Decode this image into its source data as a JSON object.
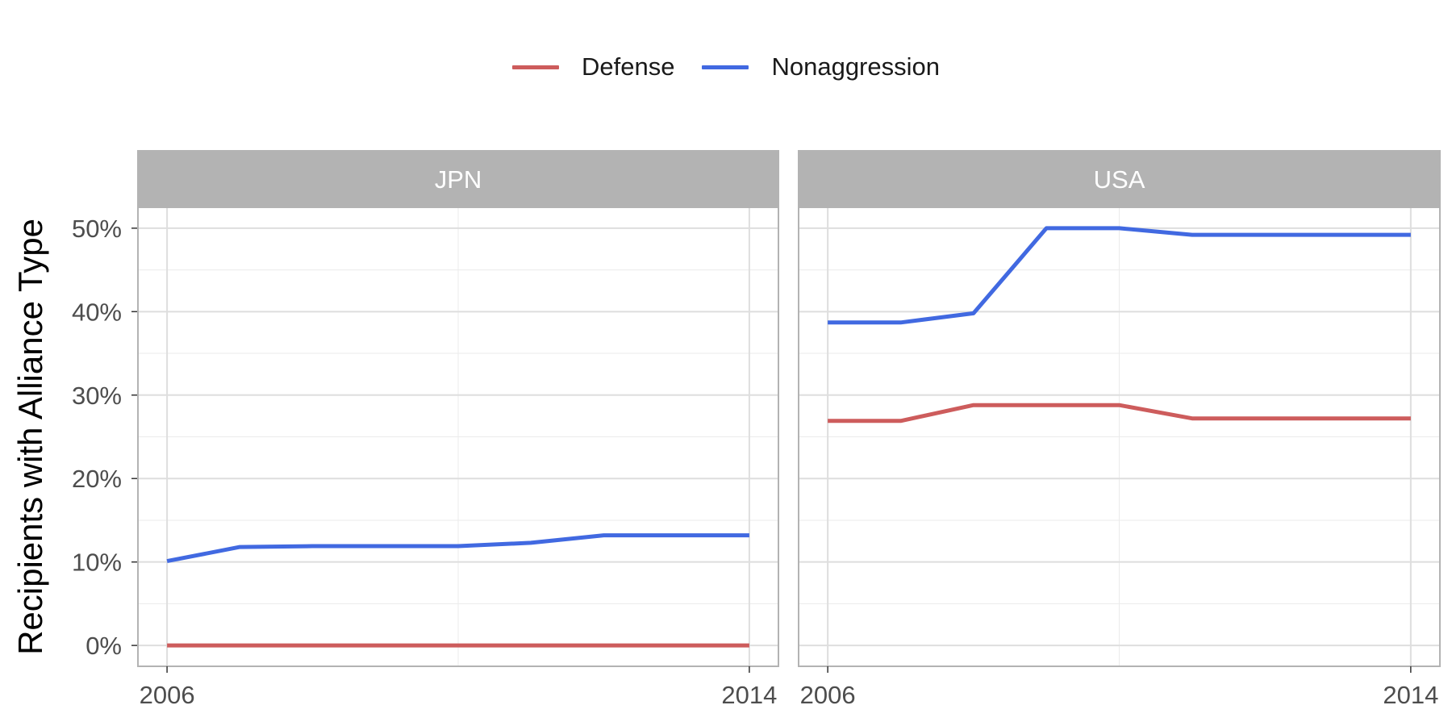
{
  "legend": {
    "items": [
      {
        "label": "Defense",
        "color": "#cd5c5c"
      },
      {
        "label": "Nonaggression",
        "color": "#4169e1"
      }
    ]
  },
  "chart_data": {
    "type": "line",
    "ylabel": "Recipients with Alliance Type",
    "xlabel": "",
    "ylim": [
      -2.5,
      52.5
    ],
    "yticks": [
      0,
      10,
      20,
      30,
      40,
      50
    ],
    "ytick_labels": [
      "0%",
      "10%",
      "20%",
      "30%",
      "40%",
      "50%"
    ],
    "xlim": [
      2005.6,
      2014.4
    ],
    "xticks": [
      2006,
      2014
    ],
    "xtick_labels": [
      "2006",
      "2014"
    ],
    "grid": true,
    "legend_position": "top",
    "panels": [
      {
        "facet": "JPN",
        "x": [
          2006,
          2007,
          2008,
          2009,
          2010,
          2011,
          2012,
          2013,
          2014
        ],
        "series": [
          {
            "name": "Defense",
            "color": "#cd5c5c",
            "values": [
              0,
              0,
              0,
              0,
              0,
              0,
              0,
              0,
              0
            ]
          },
          {
            "name": "Nonaggression",
            "color": "#4169e1",
            "values": [
              10.1,
              11.8,
              11.9,
              11.9,
              11.9,
              12.3,
              13.2,
              13.2,
              13.2
            ]
          }
        ]
      },
      {
        "facet": "USA",
        "x": [
          2006,
          2007,
          2008,
          2009,
          2010,
          2011,
          2012,
          2013,
          2014
        ],
        "series": [
          {
            "name": "Defense",
            "color": "#cd5c5c",
            "values": [
              26.9,
              26.9,
              28.8,
              28.8,
              28.8,
              27.2,
              27.2,
              27.2,
              27.2
            ]
          },
          {
            "name": "Nonaggression",
            "color": "#4169e1",
            "values": [
              38.7,
              38.7,
              39.8,
              50.0,
              50.0,
              49.2,
              49.2,
              49.2,
              49.2
            ]
          }
        ]
      }
    ]
  }
}
